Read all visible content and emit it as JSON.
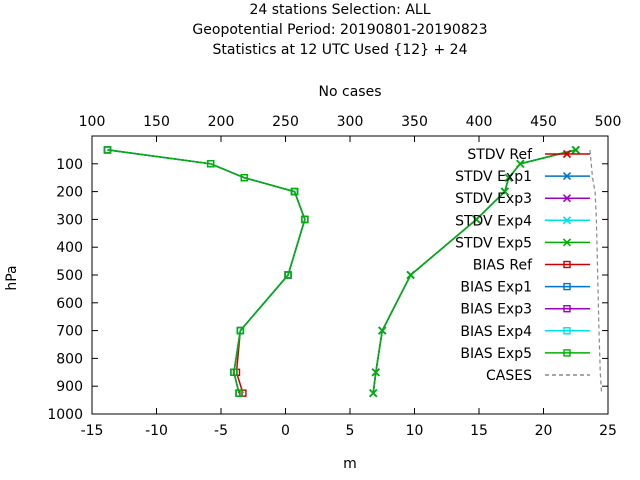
{
  "title_lines": [
    "24 stations Selection: ALL",
    "Geopotential  Period: 20190801-20190823",
    "Statistics at 12 UTC  Used {12} + 24"
  ],
  "chart_data": {
    "type": "line",
    "xlabel": "m",
    "ylabel": "hPa",
    "x2label": "No cases",
    "xlim": [
      -15,
      25
    ],
    "ylim": [
      1000,
      0
    ],
    "x2lim": [
      100,
      500
    ],
    "xticks": [
      -15,
      -10,
      -5,
      0,
      5,
      10,
      15,
      20,
      25
    ],
    "yticks": [
      100,
      200,
      300,
      400,
      500,
      600,
      700,
      800,
      900,
      1000
    ],
    "x2ticks": [
      100,
      150,
      200,
      250,
      300,
      350,
      400,
      450,
      500
    ],
    "grid": false,
    "legend_position": "top-right",
    "levels": [
      50,
      100,
      150,
      200,
      300,
      500,
      700,
      850,
      925
    ],
    "series": [
      {
        "name": "STDV Ref",
        "color": "#cc0000",
        "marker": "x",
        "values": [
          22.5,
          18.2,
          17.3,
          17.0,
          14.8,
          9.7,
          7.5,
          7.0,
          6.8
        ]
      },
      {
        "name": "STDV Exp1",
        "color": "#0072d0",
        "marker": "x",
        "values": [
          22.5,
          18.2,
          17.3,
          17.0,
          14.8,
          9.7,
          7.5,
          7.0,
          6.8
        ]
      },
      {
        "name": "STDV Exp3",
        "color": "#a000c8",
        "marker": "x",
        "values": [
          22.5,
          18.2,
          17.3,
          17.0,
          14.8,
          9.7,
          7.5,
          7.0,
          6.8
        ]
      },
      {
        "name": "STDV Exp4",
        "color": "#00e0e8",
        "marker": "x",
        "values": [
          22.5,
          18.2,
          17.3,
          17.0,
          14.8,
          9.7,
          7.5,
          7.0,
          6.8
        ]
      },
      {
        "name": "STDV Exp5",
        "color": "#00b000",
        "marker": "x",
        "values": [
          22.5,
          18.2,
          17.3,
          17.0,
          14.8,
          9.7,
          7.5,
          7.0,
          6.8
        ]
      },
      {
        "name": "BIAS Ref",
        "color": "#cc0000",
        "marker": "square",
        "values": [
          -13.8,
          -5.8,
          -3.2,
          0.7,
          1.5,
          0.2,
          -3.5,
          -3.8,
          -3.3
        ]
      },
      {
        "name": "BIAS Exp1",
        "color": "#0072d0",
        "marker": "square",
        "values": [
          -13.8,
          -5.8,
          -3.2,
          0.7,
          1.5,
          0.2,
          -3.5,
          -4.0,
          -3.6
        ]
      },
      {
        "name": "BIAS Exp3",
        "color": "#a000c8",
        "marker": "square",
        "values": [
          -13.8,
          -5.8,
          -3.2,
          0.7,
          1.5,
          0.2,
          -3.5,
          -4.0,
          -3.6
        ]
      },
      {
        "name": "BIAS Exp4",
        "color": "#00e0e8",
        "marker": "square",
        "values": [
          -13.8,
          -5.8,
          -3.2,
          0.7,
          1.5,
          0.2,
          -3.5,
          -4.0,
          -3.6
        ]
      },
      {
        "name": "BIAS Exp5",
        "color": "#00b000",
        "marker": "square",
        "values": [
          -13.8,
          -5.8,
          -3.2,
          0.7,
          1.5,
          0.2,
          -3.5,
          -4.0,
          -3.6
        ]
      }
    ],
    "cases": {
      "name": "CASES",
      "color": "#888888",
      "axis": "top",
      "levels": [
        50,
        100,
        150,
        200,
        300,
        500,
        700,
        850,
        925
      ],
      "values": [
        486,
        487,
        488,
        490,
        491,
        492,
        493,
        494,
        495
      ]
    }
  }
}
